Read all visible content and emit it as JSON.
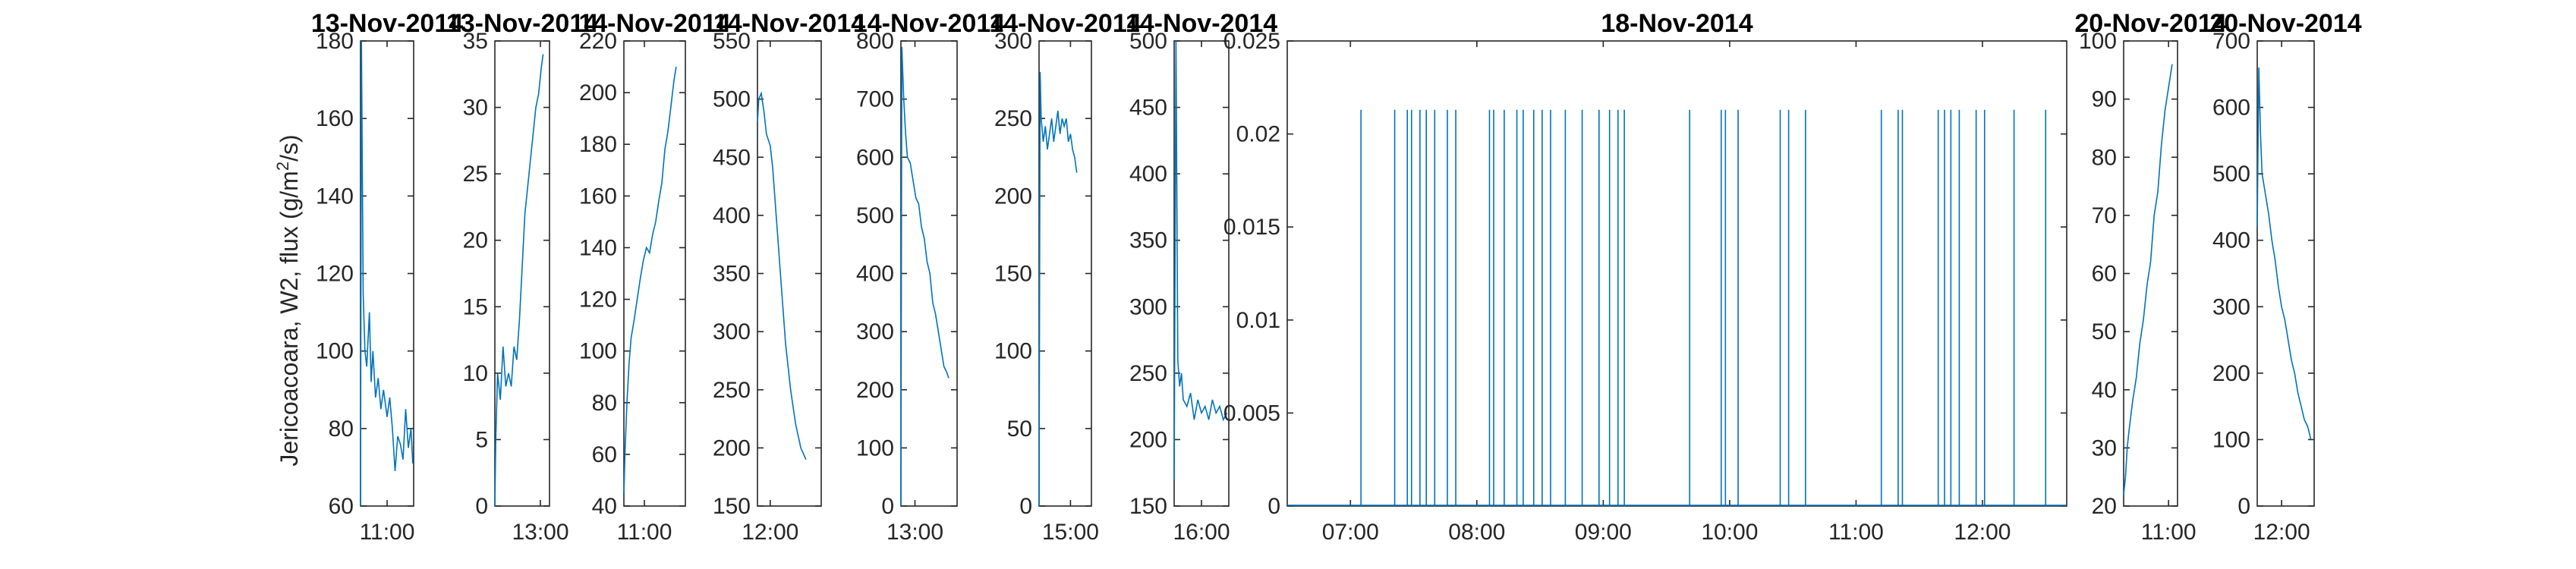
{
  "figure": {
    "ylabel_main": "Jericoacoara, W2, flux (g/m",
    "ylabel_sup": "2",
    "ylabel_tail": "/s)",
    "line_color": "#0072bd"
  },
  "chart_data": [
    {
      "type": "line",
      "title": "13-Nov-2014",
      "ylim": [
        60,
        180
      ],
      "yticks": [
        60,
        80,
        100,
        120,
        140,
        160,
        180
      ],
      "xlim": [
        "10:30",
        "11:30"
      ],
      "xticks": [
        "11:00"
      ],
      "series": [
        {
          "x": [
            "10:30",
            "10:31",
            "10:33",
            "10:35",
            "10:37",
            "10:40",
            "10:42",
            "10:44",
            "10:47",
            "10:50",
            "10:53",
            "10:56",
            "11:00",
            "11:03",
            "11:06",
            "11:09",
            "11:12",
            "11:15",
            "11:18",
            "11:21",
            "11:24",
            "11:27",
            "11:29"
          ],
          "y": [
            60,
            180,
            115,
            100,
            96,
            110,
            92,
            100,
            88,
            93,
            85,
            90,
            83,
            88,
            80,
            69,
            78,
            76,
            72,
            85,
            75,
            80,
            71
          ]
        }
      ]
    },
    {
      "type": "line",
      "title": "13-Nov-2014",
      "ylim": [
        0,
        35
      ],
      "yticks": [
        0,
        5,
        10,
        15,
        20,
        25,
        30,
        35
      ],
      "xlim": [
        "12:10",
        "13:10"
      ],
      "xticks": [
        "13:00"
      ],
      "series": [
        {
          "x": [
            "12:10",
            "12:11",
            "12:13",
            "12:16",
            "12:19",
            "12:22",
            "12:25",
            "12:28",
            "12:31",
            "12:34",
            "12:37",
            "12:40",
            "12:43",
            "12:46",
            "12:49",
            "12:52",
            "12:55",
            "12:58",
            "13:01",
            "13:03"
          ],
          "y": [
            0,
            5,
            10,
            8,
            12,
            9,
            10,
            9,
            12,
            11,
            14,
            18,
            22,
            24,
            26,
            28,
            30,
            31,
            33,
            34
          ]
        }
      ]
    },
    {
      "type": "line",
      "title": "14-Nov-2014",
      "ylim": [
        40,
        220
      ],
      "yticks": [
        40,
        60,
        80,
        100,
        120,
        140,
        160,
        180,
        200,
        220
      ],
      "xlim": [
        "10:40",
        "11:40"
      ],
      "xticks": [
        "11:00"
      ],
      "series": [
        {
          "x": [
            "10:40",
            "10:41",
            "10:43",
            "10:45",
            "10:47",
            "10:50",
            "10:53",
            "10:56",
            "10:59",
            "11:02",
            "11:05",
            "11:08",
            "11:11",
            "11:14",
            "11:17",
            "11:20",
            "11:23",
            "11:26",
            "11:29",
            "11:31"
          ],
          "y": [
            45,
            60,
            80,
            95,
            105,
            112,
            120,
            128,
            135,
            140,
            138,
            145,
            150,
            158,
            165,
            178,
            185,
            195,
            205,
            210
          ]
        }
      ]
    },
    {
      "type": "line",
      "title": "14-Nov-2014",
      "ylim": [
        150,
        550
      ],
      "yticks": [
        150,
        200,
        250,
        300,
        350,
        400,
        450,
        500,
        550
      ],
      "xlim": [
        "11:50",
        "12:40"
      ],
      "xticks": [
        "12:00"
      ],
      "series": [
        {
          "x": [
            "11:50",
            "11:51",
            "11:53",
            "11:55",
            "11:57",
            "12:00",
            "12:02",
            "12:04",
            "12:06",
            "12:08",
            "12:10",
            "12:12",
            "12:14",
            "12:16",
            "12:18",
            "12:20",
            "12:22",
            "12:24",
            "12:26",
            "12:28"
          ],
          "y": [
            480,
            500,
            505,
            490,
            470,
            460,
            440,
            410,
            380,
            350,
            320,
            290,
            270,
            250,
            235,
            220,
            210,
            200,
            195,
            190
          ]
        }
      ]
    },
    {
      "type": "line",
      "title": "14-Nov-2014",
      "ylim": [
        0,
        800
      ],
      "yticks": [
        0,
        100,
        200,
        300,
        400,
        500,
        600,
        700,
        800
      ],
      "xlim": [
        "12:45",
        "13:45"
      ],
      "xticks": [
        "13:00"
      ],
      "series": [
        {
          "x": [
            "12:45",
            "12:46",
            "12:48",
            "12:50",
            "12:52",
            "12:55",
            "12:58",
            "13:01",
            "13:04",
            "13:07",
            "13:10",
            "13:13",
            "13:16",
            "13:19",
            "13:22",
            "13:25",
            "13:28",
            "13:31",
            "13:34",
            "13:36"
          ],
          "y": [
            0,
            790,
            700,
            640,
            600,
            590,
            560,
            530,
            520,
            480,
            460,
            420,
            400,
            350,
            330,
            300,
            270,
            240,
            230,
            220
          ]
        }
      ]
    },
    {
      "type": "line",
      "title": "14-Nov-2014",
      "ylim": [
        0,
        300
      ],
      "yticks": [
        0,
        50,
        100,
        150,
        200,
        250,
        300
      ],
      "xlim": [
        "14:30",
        "15:20"
      ],
      "xticks": [
        "15:00"
      ],
      "series": [
        {
          "x": [
            "14:30",
            "14:31",
            "14:32",
            "14:34",
            "14:36",
            "14:38",
            "14:40",
            "14:42",
            "14:44",
            "14:46",
            "14:48",
            "14:50",
            "14:52",
            "14:54",
            "14:56",
            "14:58",
            "15:00",
            "15:02",
            "15:04",
            "15:06"
          ],
          "y": [
            0,
            280,
            250,
            235,
            245,
            230,
            240,
            250,
            235,
            245,
            255,
            240,
            250,
            245,
            250,
            235,
            240,
            230,
            225,
            215
          ]
        }
      ]
    },
    {
      "type": "line",
      "title": "14-Nov-2014",
      "ylim": [
        150,
        500
      ],
      "yticks": [
        150,
        200,
        250,
        300,
        350,
        400,
        450,
        500
      ],
      "xlim": [
        "15:45",
        "16:15"
      ],
      "xticks": [
        "16:00"
      ],
      "series": [
        {
          "x": [
            "15:45",
            "15:46",
            "15:47",
            "15:48",
            "15:49",
            "15:50",
            "15:52",
            "15:54",
            "15:56",
            "15:58",
            "16:00",
            "16:02",
            "16:04",
            "16:06",
            "16:08",
            "16:10",
            "16:12",
            "16:14"
          ],
          "y": [
            170,
            500,
            260,
            240,
            250,
            230,
            225,
            235,
            215,
            230,
            220,
            225,
            215,
            230,
            220,
            225,
            215,
            220
          ]
        }
      ]
    },
    {
      "type": "line",
      "title": "18-Nov-2014",
      "ylim": [
        0,
        0.025
      ],
      "yticks": [
        "0",
        "0.005",
        "0.01",
        "0.015",
        "0.02",
        "0.025"
      ],
      "xlim": [
        "06:30",
        "12:40"
      ],
      "xticks": [
        "07:00",
        "08:00",
        "09:00",
        "10:00",
        "11:00",
        "12:00"
      ],
      "spike_value": 0.0213,
      "spike_times": [
        "07:05",
        "07:21",
        "07:27",
        "07:29",
        "07:33",
        "07:36",
        "07:40",
        "07:46",
        "07:50",
        "08:06",
        "08:08",
        "08:13",
        "08:19",
        "08:22",
        "08:27",
        "08:31",
        "08:35",
        "08:42",
        "08:50",
        "08:58",
        "09:03",
        "09:07",
        "09:10",
        "09:41",
        "09:56",
        "09:58",
        "10:04",
        "10:24",
        "10:28",
        "10:36",
        "11:12",
        "11:20",
        "11:22",
        "11:39",
        "11:42",
        "11:45",
        "11:49",
        "11:57",
        "12:01",
        "12:15",
        "12:30"
      ]
    },
    {
      "type": "line",
      "title": "20-Nov-2014",
      "ylim": [
        20,
        100
      ],
      "yticks": [
        20,
        30,
        40,
        50,
        60,
        70,
        80,
        90,
        100
      ],
      "xlim": [
        "10:35",
        "11:05"
      ],
      "xticks": [
        "11:00"
      ],
      "series": [
        {
          "x": [
            "10:35",
            "10:36",
            "10:37",
            "10:38",
            "10:40",
            "10:42",
            "10:44",
            "10:46",
            "10:48",
            "10:50",
            "10:52",
            "10:54",
            "10:56",
            "10:58",
            "11:00",
            "11:02"
          ],
          "y": [
            22,
            25,
            30,
            33,
            38,
            42,
            48,
            52,
            58,
            62,
            70,
            74,
            82,
            88,
            92,
            96
          ]
        }
      ]
    },
    {
      "type": "line",
      "title": "20-Nov-2014",
      "ylim": [
        0,
        700
      ],
      "yticks": [
        0,
        100,
        200,
        300,
        400,
        500,
        600,
        700
      ],
      "xlim": [
        "11:45",
        "12:20"
      ],
      "xticks": [
        "12:00"
      ],
      "series": [
        {
          "x": [
            "11:45",
            "11:46",
            "11:47",
            "11:48",
            "11:50",
            "11:52",
            "11:54",
            "11:56",
            "11:58",
            "12:00",
            "12:02",
            "12:04",
            "12:06",
            "12:08",
            "12:10",
            "12:12",
            "12:14",
            "12:16",
            "12:18"
          ],
          "y": [
            420,
            660,
            560,
            500,
            470,
            440,
            400,
            370,
            330,
            300,
            280,
            250,
            220,
            200,
            170,
            150,
            130,
            120,
            100
          ]
        }
      ]
    }
  ]
}
